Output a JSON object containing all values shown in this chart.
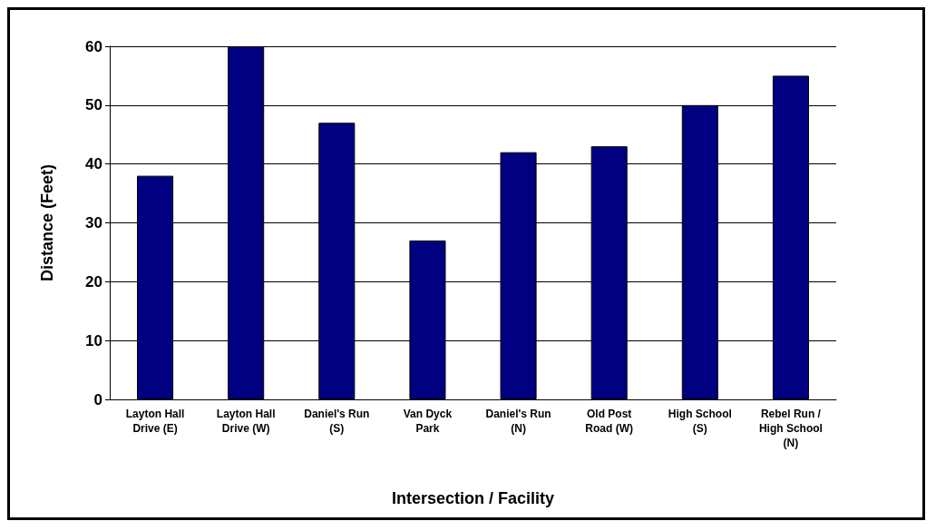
{
  "chart_data": {
    "type": "bar",
    "xlabel": "Intersection / Facility",
    "ylabel": "Distance (Feet)",
    "categories": [
      "Layton Hall\nDrive (E)",
      "Layton Hall\nDrive (W)",
      "Daniel's Run\n(S)",
      "Van Dyck\nPark",
      "Daniel's Run\n(N)",
      "Old Post\nRoad (W)",
      "High School\n(S)",
      "Rebel Run /\nHigh School\n(N)"
    ],
    "values": [
      38,
      60,
      47,
      27,
      42,
      43,
      50,
      55
    ],
    "color": "#000080",
    "ylim": [
      0,
      60
    ],
    "yticks": [
      0,
      10,
      20,
      30,
      40,
      50,
      60
    ],
    "grid": "y"
  }
}
